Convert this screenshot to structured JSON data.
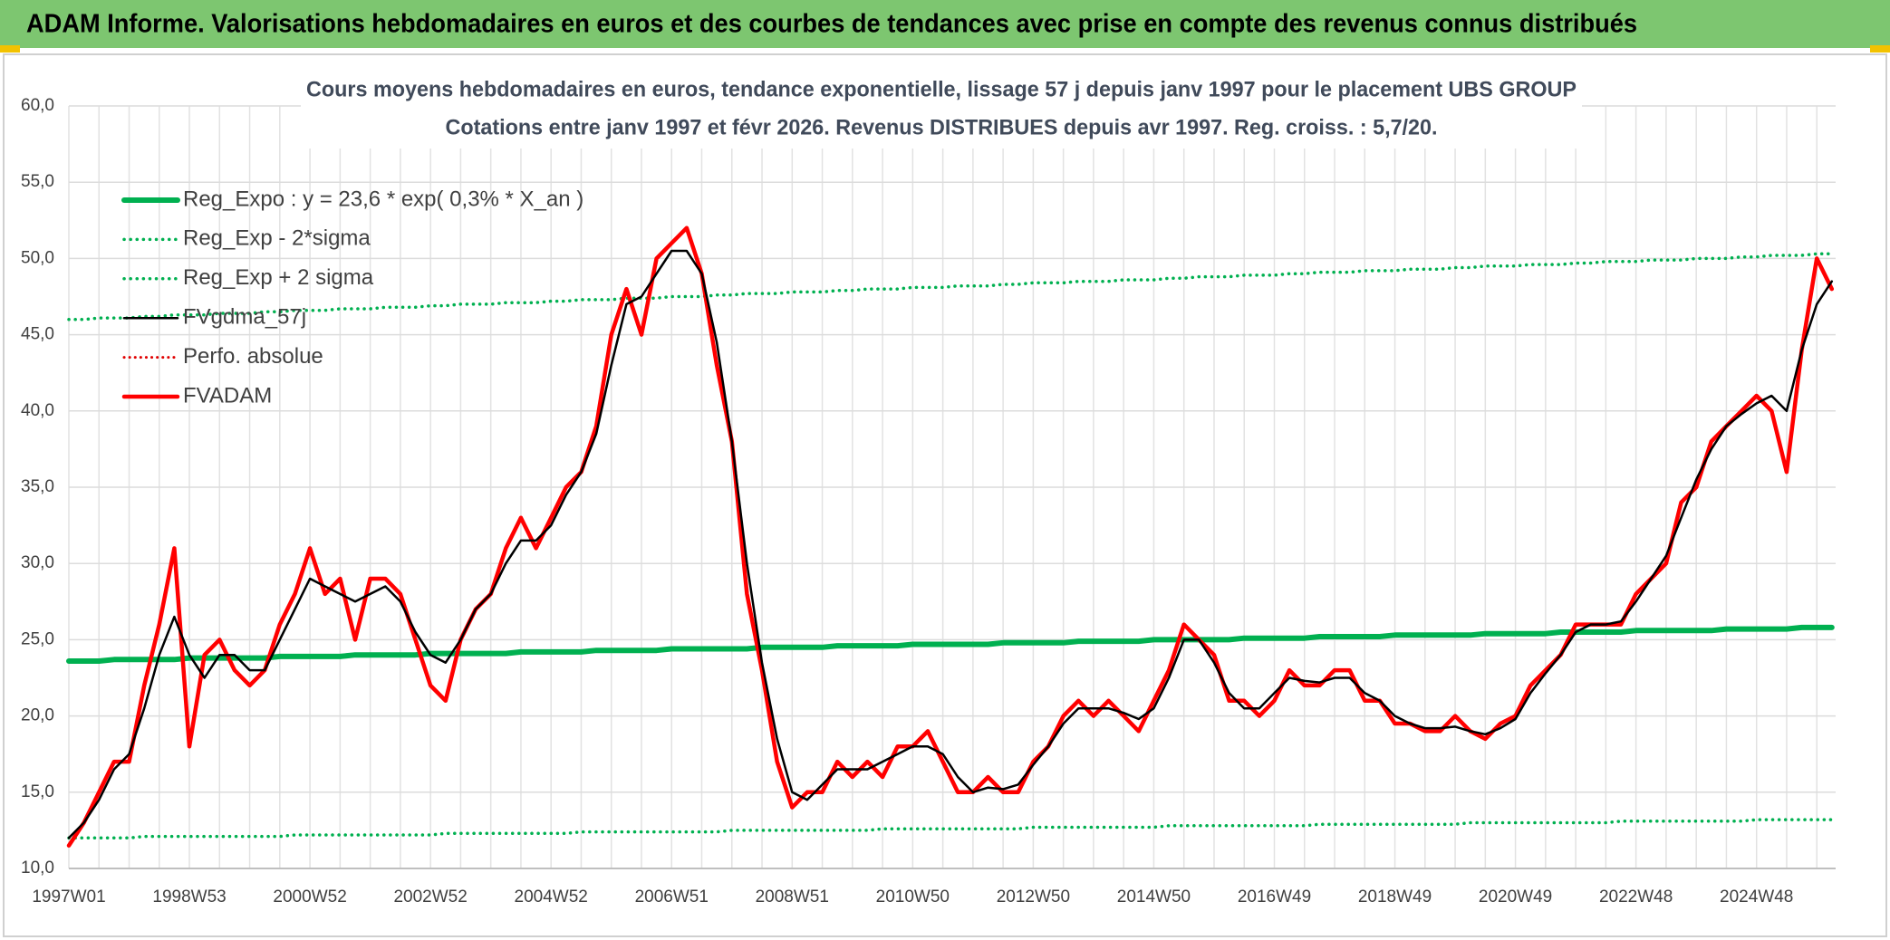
{
  "header": {
    "title": "ADAM Informe. Valorisations hebdomadaires en euros et des courbes de tendances avec prise en compte des revenus connus distribués"
  },
  "chart_data": {
    "type": "line",
    "title": "Cours moyens hebdomadaires en euros, tendance exponentielle, lissage 57 j depuis janv 1997 pour le placement UBS GROUP",
    "subtitle": "Cotations entre janv 1997 et févr 2026. Revenus DISTRIBUES depuis avr 1997. Reg. croiss. : 5,7/20.",
    "ylim": [
      10,
      60
    ],
    "yticks": [
      {
        "value": 10,
        "label": "10,0"
      },
      {
        "value": 15,
        "label": "15,0"
      },
      {
        "value": 20,
        "label": "20,0"
      },
      {
        "value": 25,
        "label": "25,0"
      },
      {
        "value": 30,
        "label": "30,0"
      },
      {
        "value": 35,
        "label": "35,0"
      },
      {
        "value": 40,
        "label": "40,0"
      },
      {
        "value": 45,
        "label": "45,0"
      },
      {
        "value": 50,
        "label": "50,0"
      },
      {
        "value": 55,
        "label": "55,0"
      },
      {
        "value": 60,
        "label": "60,0"
      }
    ],
    "grid": true,
    "categories": [
      "1997W01",
      null,
      null,
      null,
      null,
      null,
      null,
      null,
      "1998W53",
      null,
      null,
      null,
      null,
      null,
      null,
      null,
      "2000W52",
      null,
      null,
      null,
      null,
      null,
      null,
      null,
      "2002W52",
      null,
      null,
      null,
      null,
      null,
      null,
      null,
      "2004W52",
      null,
      null,
      null,
      null,
      null,
      null,
      null,
      "2006W51",
      null,
      null,
      null,
      null,
      null,
      null,
      null,
      "2008W51",
      null,
      null,
      null,
      null,
      null,
      null,
      null,
      "2010W50",
      null,
      null,
      null,
      null,
      null,
      null,
      null,
      "2012W50",
      null,
      null,
      null,
      null,
      null,
      null,
      null,
      "2014W50",
      null,
      null,
      null,
      null,
      null,
      null,
      null,
      "2016W49",
      null,
      null,
      null,
      null,
      null,
      null,
      null,
      "2018W49",
      null,
      null,
      null,
      null,
      null,
      null,
      null,
      "2020W49",
      null,
      null,
      null,
      null,
      null,
      null,
      null,
      "2022W48",
      null,
      null,
      null,
      null,
      null,
      null,
      null,
      "2024W48",
      null,
      null,
      null,
      null,
      null
    ],
    "series": [
      {
        "name": "Reg_Expo : y = 23,6 * exp( 0,3% *  X_an )",
        "color": "#00b050",
        "style": "solid",
        "width": 6,
        "values": [
          23.6,
          23.6,
          23.6,
          23.7,
          23.7,
          23.7,
          23.7,
          23.7,
          23.8,
          23.8,
          23.8,
          23.8,
          23.8,
          23.8,
          23.9,
          23.9,
          23.9,
          23.9,
          23.9,
          24.0,
          24.0,
          24.0,
          24.0,
          24.0,
          24.1,
          24.1,
          24.1,
          24.1,
          24.1,
          24.1,
          24.2,
          24.2,
          24.2,
          24.2,
          24.2,
          24.3,
          24.3,
          24.3,
          24.3,
          24.3,
          24.4,
          24.4,
          24.4,
          24.4,
          24.4,
          24.4,
          24.5,
          24.5,
          24.5,
          24.5,
          24.5,
          24.6,
          24.6,
          24.6,
          24.6,
          24.6,
          24.7,
          24.7,
          24.7,
          24.7,
          24.7,
          24.7,
          24.8,
          24.8,
          24.8,
          24.8,
          24.8,
          24.9,
          24.9,
          24.9,
          24.9,
          24.9,
          25.0,
          25.0,
          25.0,
          25.0,
          25.0,
          25.0,
          25.1,
          25.1,
          25.1,
          25.1,
          25.1,
          25.2,
          25.2,
          25.2,
          25.2,
          25.2,
          25.3,
          25.3,
          25.3,
          25.3,
          25.3,
          25.3,
          25.4,
          25.4,
          25.4,
          25.4,
          25.4,
          25.5,
          25.5,
          25.5,
          25.5,
          25.5,
          25.6,
          25.6,
          25.6,
          25.6,
          25.6,
          25.6,
          25.7,
          25.7,
          25.7,
          25.7,
          25.7,
          25.8,
          25.8,
          25.8
        ]
      },
      {
        "name": "Reg_Exp - 2*sigma",
        "color": "#00b050",
        "style": "dotted",
        "width": 3.5,
        "values": [
          12.0,
          12.0,
          12.0,
          12.0,
          12.0,
          12.1,
          12.1,
          12.1,
          12.1,
          12.1,
          12.1,
          12.1,
          12.1,
          12.1,
          12.1,
          12.2,
          12.2,
          12.2,
          12.2,
          12.2,
          12.2,
          12.2,
          12.2,
          12.2,
          12.2,
          12.3,
          12.3,
          12.3,
          12.3,
          12.3,
          12.3,
          12.3,
          12.3,
          12.3,
          12.4,
          12.4,
          12.4,
          12.4,
          12.4,
          12.4,
          12.4,
          12.4,
          12.4,
          12.4,
          12.5,
          12.5,
          12.5,
          12.5,
          12.5,
          12.5,
          12.5,
          12.5,
          12.5,
          12.5,
          12.6,
          12.6,
          12.6,
          12.6,
          12.6,
          12.6,
          12.6,
          12.6,
          12.6,
          12.6,
          12.7,
          12.7,
          12.7,
          12.7,
          12.7,
          12.7,
          12.7,
          12.7,
          12.7,
          12.8,
          12.8,
          12.8,
          12.8,
          12.8,
          12.8,
          12.8,
          12.8,
          12.8,
          12.8,
          12.9,
          12.9,
          12.9,
          12.9,
          12.9,
          12.9,
          12.9,
          12.9,
          12.9,
          12.9,
          13.0,
          13.0,
          13.0,
          13.0,
          13.0,
          13.0,
          13.0,
          13.0,
          13.0,
          13.0,
          13.1,
          13.1,
          13.1,
          13.1,
          13.1,
          13.1,
          13.1,
          13.1,
          13.1,
          13.2,
          13.2,
          13.2,
          13.2,
          13.2,
          13.2
        ]
      },
      {
        "name": "Reg_Exp + 2 sigma",
        "color": "#00b050",
        "style": "dotted",
        "width": 3.5,
        "values": [
          46.0,
          46.0,
          46.1,
          46.1,
          46.1,
          46.2,
          46.2,
          46.3,
          46.3,
          46.3,
          46.4,
          46.4,
          46.4,
          46.5,
          46.5,
          46.6,
          46.6,
          46.6,
          46.7,
          46.7,
          46.7,
          46.8,
          46.8,
          46.8,
          46.9,
          46.9,
          47.0,
          47.0,
          47.0,
          47.1,
          47.1,
          47.1,
          47.2,
          47.2,
          47.3,
          47.3,
          47.3,
          47.4,
          47.4,
          47.4,
          47.5,
          47.5,
          47.5,
          47.6,
          47.6,
          47.7,
          47.7,
          47.7,
          47.8,
          47.8,
          47.8,
          47.9,
          47.9,
          48.0,
          48.0,
          48.0,
          48.1,
          48.1,
          48.1,
          48.2,
          48.2,
          48.2,
          48.3,
          48.3,
          48.4,
          48.4,
          48.4,
          48.5,
          48.5,
          48.5,
          48.6,
          48.6,
          48.6,
          48.7,
          48.7,
          48.8,
          48.8,
          48.8,
          48.9,
          48.9,
          48.9,
          49.0,
          49.0,
          49.1,
          49.1,
          49.1,
          49.2,
          49.2,
          49.2,
          49.3,
          49.3,
          49.3,
          49.4,
          49.4,
          49.5,
          49.5,
          49.5,
          49.6,
          49.6,
          49.6,
          49.7,
          49.7,
          49.8,
          49.8,
          49.8,
          49.9,
          49.9,
          49.9,
          50.0,
          50.0,
          50.0,
          50.1,
          50.1,
          50.2,
          50.2,
          50.2,
          50.3,
          50.3
        ]
      },
      {
        "name": "FVgdma_57j",
        "color": "#000000",
        "style": "solid",
        "width": 2.5,
        "values": [
          12,
          13,
          14.5,
          16.5,
          17.5,
          20.5,
          24,
          26.5,
          24,
          22.5,
          24,
          24,
          23,
          23,
          25,
          27,
          29,
          28.5,
          28,
          27.5,
          28,
          28.5,
          27.5,
          25.5,
          24,
          23.5,
          25,
          27,
          28,
          30,
          31.5,
          31.5,
          32.5,
          34.5,
          36,
          38.5,
          43,
          47,
          47.5,
          49,
          50.5,
          50.5,
          49,
          44.5,
          38,
          30,
          23.5,
          18.5,
          15,
          14.5,
          15.5,
          16.5,
          16.5,
          16.5,
          17,
          17.5,
          18,
          18,
          17.5,
          16,
          15,
          15.3,
          15.2,
          15.5,
          16.8,
          18,
          19.5,
          20.5,
          20.5,
          20.5,
          20.2,
          19.8,
          20.5,
          22.5,
          25,
          25,
          23.5,
          21.5,
          20.5,
          20.5,
          21.5,
          22.5,
          22.3,
          22.2,
          22.5,
          22.5,
          21.5,
          21,
          20,
          19.5,
          19.2,
          19.2,
          19.3,
          19,
          18.8,
          19.2,
          19.8,
          21.5,
          22.8,
          24,
          25.5,
          26,
          26,
          26.2,
          27.5,
          29,
          30.5,
          33,
          35.5,
          37.5,
          39,
          39.8,
          40.5,
          41,
          40,
          44,
          47,
          48.5
        ]
      },
      {
        "name": "Perfo. absolue",
        "color": "#e00000",
        "style": "dotted",
        "width": 3,
        "values": [
          null,
          null,
          null,
          null,
          null,
          null,
          null,
          null,
          null,
          null,
          null,
          null,
          null,
          null,
          null,
          null,
          null,
          null,
          null,
          null,
          null,
          null,
          null,
          null,
          null,
          null,
          null,
          null,
          null,
          null,
          null,
          null,
          null,
          null,
          null,
          null,
          null,
          null,
          null,
          null,
          null,
          null,
          null,
          null,
          null,
          null,
          null,
          null,
          null,
          null,
          null,
          null,
          null,
          null,
          null,
          null,
          null,
          null,
          null,
          null,
          null,
          null,
          null,
          null,
          null,
          null,
          null,
          null,
          null,
          null,
          null,
          null,
          null,
          null,
          null,
          null,
          null,
          null,
          null,
          null,
          null,
          null,
          null,
          null,
          null,
          null,
          null,
          null,
          null,
          null,
          null,
          null,
          null,
          null,
          null,
          null,
          null,
          null,
          null,
          null,
          null,
          null,
          null,
          null,
          null,
          null,
          null,
          null,
          null,
          null,
          null,
          null,
          null,
          null,
          null,
          null,
          null,
          null
        ]
      },
      {
        "name": "FVADAM",
        "color": "#ff0000",
        "style": "solid",
        "width": 4.5,
        "values": [
          11.5,
          13,
          15,
          17,
          17,
          22,
          26,
          31,
          18,
          24,
          25,
          23,
          22,
          23,
          26,
          28,
          31,
          28,
          29,
          25,
          29,
          29,
          28,
          25,
          22,
          21,
          25,
          27,
          28,
          31,
          33,
          31,
          33,
          35,
          36,
          39,
          45,
          48,
          45,
          50,
          51,
          52,
          49,
          43,
          38,
          28,
          23,
          17,
          14,
          15,
          15,
          17,
          16,
          17,
          16,
          18,
          18,
          19,
          17,
          15,
          15,
          16,
          15,
          15,
          17,
          18,
          20,
          21,
          20,
          21,
          20,
          19,
          21,
          23,
          26,
          25,
          24,
          21,
          21,
          20,
          21,
          23,
          22,
          22,
          23,
          23,
          21,
          21,
          19.5,
          19.5,
          19,
          19,
          20,
          19,
          18.5,
          19.5,
          20,
          22,
          23,
          24,
          26,
          26,
          26,
          26,
          28,
          29,
          30,
          34,
          35,
          38,
          39,
          40,
          41,
          40,
          36,
          44,
          50,
          48
        ]
      }
    ]
  }
}
